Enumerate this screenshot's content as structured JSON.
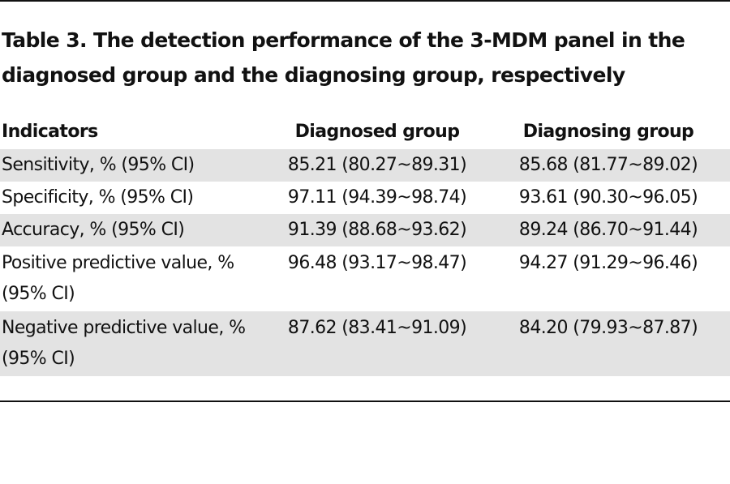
{
  "caption": {
    "line1": "Table 3. The detection performance of the 3-MDM panel in the",
    "line2": "diagnosed group and the diagnosing group, respectively"
  },
  "table": {
    "headers": [
      "Indicators",
      "Diagnosed group",
      "Diagnosing group"
    ],
    "rows": [
      {
        "indicator": "Sensitivity, % (95% CI)",
        "indicator2": "",
        "diagnosed": "85.21 (80.27~89.31)",
        "diagnosing": "85.68 (81.77~89.02)"
      },
      {
        "indicator": "Specificity, % (95% CI)",
        "indicator2": "",
        "diagnosed": "97.11 (94.39~98.74)",
        "diagnosing": "93.61 (90.30~96.05)"
      },
      {
        "indicator": "Accuracy, % (95% CI)",
        "indicator2": "",
        "diagnosed": "91.39 (88.68~93.62)",
        "diagnosing": "89.24 (86.70~91.44)"
      },
      {
        "indicator": "Positive predictive value, %",
        "indicator2": "(95% CI)",
        "diagnosed": "96.48 (93.17~98.47)",
        "diagnosing": "94.27 (91.29~96.46)"
      },
      {
        "indicator": "Negative predictive value, %",
        "indicator2": "(95% CI)",
        "diagnosed": "87.62 (83.41~91.09)",
        "diagnosing": "84.20 (79.93~87.87)"
      }
    ]
  }
}
